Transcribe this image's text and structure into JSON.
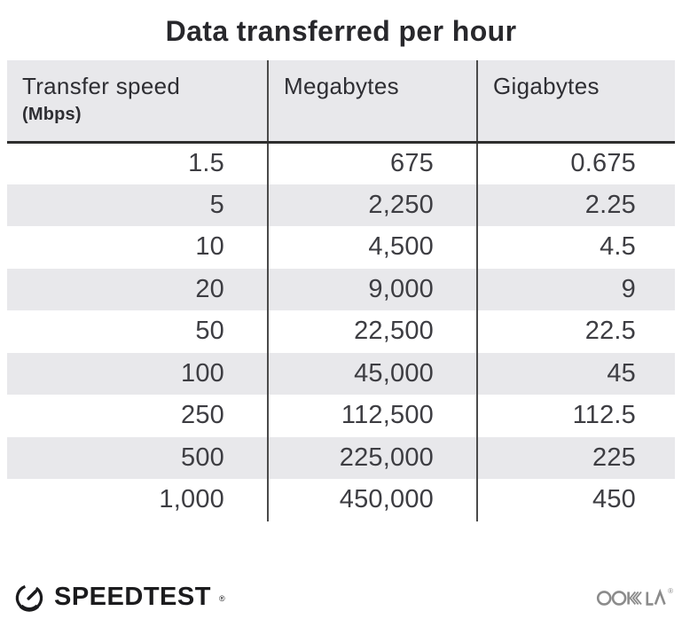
{
  "title": "Data transferred per hour",
  "chart_data": {
    "type": "table",
    "title": "Data transferred per hour",
    "columns": [
      {
        "label": "Transfer speed",
        "sublabel": "(Mbps)"
      },
      {
        "label": "Megabytes",
        "sublabel": ""
      },
      {
        "label": "Gigabytes",
        "sublabel": ""
      }
    ],
    "rows": [
      [
        "1.5",
        "675",
        "0.675"
      ],
      [
        "5",
        "2,250",
        "2.25"
      ],
      [
        "10",
        "4,500",
        "4.5"
      ],
      [
        "20",
        "9,000",
        "9"
      ],
      [
        "50",
        "22,500",
        "22.5"
      ],
      [
        "100",
        "45,000",
        "45"
      ],
      [
        "250",
        "112,500",
        "112.5"
      ],
      [
        "500",
        "225,000",
        "225"
      ],
      [
        "1,000",
        "450,000",
        "450"
      ]
    ],
    "layout": {
      "striped_rows": true,
      "column_dividers": true,
      "header_background": true
    }
  },
  "footer": {
    "speedtest": {
      "label": "SPEEDTEST",
      "registered_mark": "®",
      "icon": "speedtest-gauge-icon"
    },
    "ookla": {
      "label": "OOKLA",
      "registered_mark": "®"
    }
  },
  "colors": {
    "background": "#ffffff",
    "header_bg": "#e8e8eb",
    "stripe": "#e8e8eb",
    "divider": "#4a4a4a",
    "header_border": "#2e2e2e",
    "title_text": "#28282c",
    "header_text": "#2e2e33",
    "number_text": "#3d3d42",
    "speedtest_black": "#1b1b1d",
    "ookla_gray": "#8b8b8b"
  }
}
